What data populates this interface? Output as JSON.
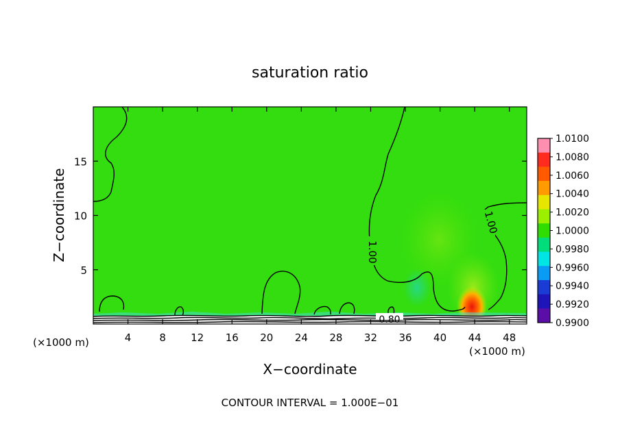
{
  "chart_data": {
    "type": "heatmap",
    "title": "saturation ratio",
    "xlabel": "X−coordinate",
    "ylabel": "Z−coordinate",
    "x_unit_left": "(×1000 m)",
    "x_unit_right": "(×1000 m)",
    "x_ticks": [
      4,
      8,
      12,
      16,
      20,
      24,
      28,
      32,
      36,
      40,
      44,
      48
    ],
    "y_ticks": [
      5,
      10,
      15
    ],
    "xlim": [
      0,
      50
    ],
    "ylim": [
      0,
      20
    ],
    "footer": "CONTOUR INTERVAL = 1.000E−01",
    "contour_labels": [
      {
        "text": "1.00",
        "x": 31.8,
        "z": 6.0
      },
      {
        "text": "1.00",
        "x": 45.5,
        "z": 9.0
      },
      {
        "text": "0.80",
        "x": 34.8,
        "z": 0.4
      }
    ],
    "colorbar": {
      "ticks": [
        "1.0100",
        "1.0080",
        "1.0060",
        "1.0040",
        "1.0020",
        "1.0000",
        "0.9980",
        "0.9960",
        "0.9940",
        "0.9920",
        "0.9900"
      ],
      "colors": [
        "#ff8fb0",
        "#ff2b1e",
        "#ff5a00",
        "#ff9a00",
        "#e6e600",
        "#9bf000",
        "#2fdd00",
        "#00dd7a",
        "#00e4e4",
        "#0a9cf5",
        "#1a3bd4",
        "#1f14b8",
        "#5b0da8"
      ]
    },
    "field": {
      "background_value": 1.0,
      "features": [
        {
          "name": "plume-core",
          "x": 43.6,
          "z": 2.0,
          "value": 1.0085
        },
        {
          "name": "plume-warm",
          "x": 43.8,
          "z": 4.5,
          "value": 1.0025
        },
        {
          "name": "upper-hump",
          "x": 39.5,
          "z": 8.5,
          "value": 1.0012
        },
        {
          "name": "moist-patch",
          "x": 37.0,
          "z": 3.0,
          "value": 0.9985
        },
        {
          "name": "surface-dry",
          "x": 25.0,
          "z": 0.5,
          "value": 0.996
        }
      ]
    }
  }
}
